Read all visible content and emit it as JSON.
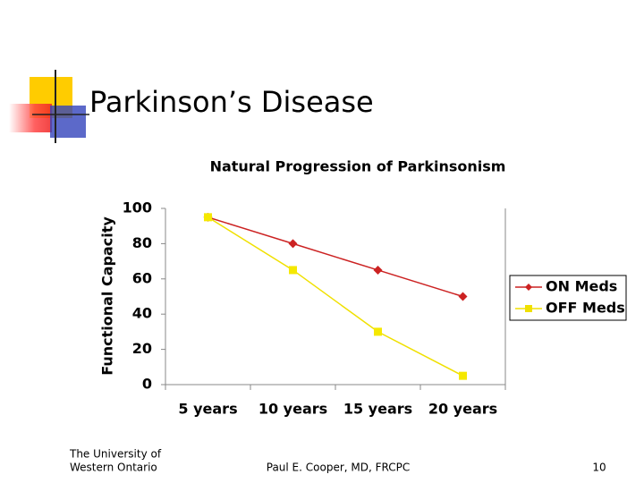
{
  "slide": {
    "title": "Parkinson’s Disease",
    "footer_left": [
      "The University of",
      "Western Ontario"
    ],
    "footer_center": "Paul E. Cooper, MD, FRCPC",
    "page_number": 10
  },
  "chart_data": {
    "type": "line",
    "title": "Natural Progression of Parkinsonism",
    "y_label": "Functional Capacity",
    "categories": [
      "5 years",
      "10 years",
      "15 years",
      "20 years"
    ],
    "series": [
      {
        "name": "ON Meds",
        "color": "#cc2222",
        "marker": "diamond",
        "values": [
          95,
          80,
          65,
          50
        ]
      },
      {
        "name": "OFF Meds",
        "color": "#ffff00",
        "marker": "square",
        "values": [
          95,
          65,
          30,
          5
        ]
      }
    ],
    "ylim": [
      0,
      100
    ],
    "yticks": [
      0,
      20,
      40,
      60,
      80,
      100
    ],
    "grid": false,
    "legend": "right"
  }
}
